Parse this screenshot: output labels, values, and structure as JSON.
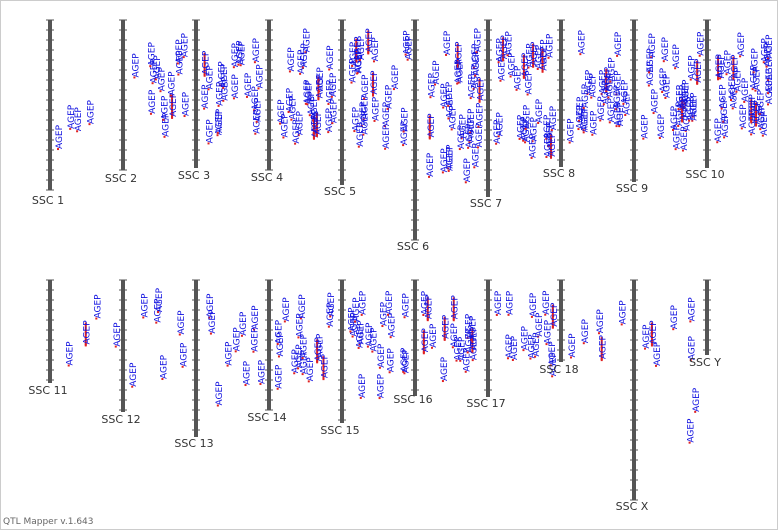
{
  "footer": "QTL Mapper v.1.643",
  "chromosomes": [
    {
      "name": "SSC 1",
      "qtls": [
        "AGEP",
        "AGEP",
        "AGEP",
        "AGEP"
      ]
    },
    {
      "name": "SSC 2",
      "qtls": [
        "AGEP",
        "AGEP",
        "AGEP",
        "AGEP",
        "AGEP",
        "AGEP",
        "AGEP",
        "AGEP",
        "AGEP",
        "AGEP",
        "AGEP",
        "AGEP",
        "AGEP",
        "AGEP"
      ]
    },
    {
      "name": "SSC 3",
      "qtls": [
        "AGEP",
        "AGEP",
        "AGEP",
        "AGEP",
        "AGEP",
        "AGEP",
        "AGEP",
        "AGEP",
        "AGEP",
        "AGEP",
        "AGEP",
        "AGEP",
        "AGEP",
        "AGEP",
        "AGEP",
        "AGEP",
        "AGEP",
        "AGEP",
        "AGEP",
        "AGEP"
      ]
    },
    {
      "name": "SSC 4",
      "qtls": [
        "AGEP",
        "AGEP",
        "AGEP",
        "AGEP",
        "AGEP",
        "AGEP",
        "AGEP",
        "AGEP",
        "AGEP",
        "AGEP",
        "AGEP",
        "AGEP",
        "AGEP",
        "AGEP",
        "AGEP",
        "AGEP",
        "AGEP",
        "AGEP",
        "AGEP",
        "AGEP",
        "AGEP",
        "AGEP",
        "AGEP",
        "AGEP"
      ]
    },
    {
      "name": "SSC 5",
      "qtls": [
        "AGEP",
        "AGEP",
        "AGEP",
        "AGEP",
        "AGEP",
        "AGEP",
        "AGEP",
        "AGEP",
        "AGEP",
        "AGEP",
        "AGEP",
        "AGEP",
        "AGEP",
        "AGEP",
        "AGEP",
        "AGEP",
        "AGEP",
        "AGEP",
        "AGEP",
        "AGEP",
        "AGEP",
        "AGEP",
        "AGEP",
        "AGEP"
      ]
    },
    {
      "name": "SSC 6",
      "qtls": [
        "AGEP",
        "AGEP",
        "AGEP",
        "AGEP",
        "AGEP",
        "AGEP",
        "AGEP",
        "AGEP",
        "AGEP",
        "AGEP",
        "AGEP",
        "AGEP",
        "AGEP",
        "AGEP",
        "AGEP",
        "AGEP",
        "AGEP",
        "AGEP",
        "AGEP",
        "AGEP",
        "AGEP",
        "AGEP",
        "AGEP",
        "AGEP",
        "AGEP",
        "AGEP",
        "AGEP",
        "AGEP",
        "AGEP",
        "AGEP"
      ]
    },
    {
      "name": "SSC 7",
      "qtls": [
        "AGEP",
        "AGEP",
        "AGEP",
        "AGEP",
        "AGEP",
        "AGEP",
        "AGEP",
        "AGEP",
        "AGEP",
        "AGEP",
        "AGEP",
        "AGEP",
        "AGEP",
        "AGEP",
        "AGEP",
        "AGEP",
        "AGEP",
        "AGEP",
        "AGEP",
        "AGEP",
        "AGEP",
        "AGEP",
        "AGEP",
        "AGEP",
        "AGEP",
        "AGEP",
        "AGEP",
        "AGEP"
      ]
    },
    {
      "name": "SSC 8",
      "qtls": [
        "AGEP",
        "AGEP",
        "AGEP",
        "AGEP",
        "AGEP",
        "AGEP",
        "AGEP",
        "AGEP",
        "AGEP",
        "AGEP",
        "AGEP",
        "AGEP",
        "AGEP",
        "AGEP",
        "AGEP",
        "AGEP",
        "AGEP",
        "AGEP",
        "AGEP",
        "AGEP",
        "AGEP",
        "AGEP",
        "AGEP",
        "AGEP"
      ]
    },
    {
      "name": "SSC 9",
      "qtls": [
        "AGEP",
        "AGEP",
        "AGEP",
        "AGEP",
        "AGEP",
        "AGEP",
        "AGEP",
        "AGEP",
        "AGEP",
        "AGEP",
        "AGEP",
        "AGEP",
        "AGEP",
        "AGEP",
        "AGEP",
        "AGEP",
        "AGEP",
        "AGEP",
        "AGEP",
        "AGEP",
        "AGEP",
        "AGEP",
        "AGEP",
        "AGEP",
        "AGEP",
        "AGEP"
      ]
    },
    {
      "name": "SSC 10",
      "qtls": [
        "AGEP",
        "AGEP",
        "AGEP",
        "AGEP",
        "AGEP",
        "AGEP",
        "AGEP",
        "AGEP",
        "AGEP",
        "AGEP",
        "AGEP",
        "AGEP",
        "AGEP",
        "AGEP",
        "AGEP",
        "AGEP",
        "AGEP",
        "AGEP",
        "AGEP",
        "AGEP",
        "AGEP",
        "AGEP",
        "AGEP",
        "AGEP",
        "AGEP",
        "AGEP",
        "AGEP",
        "AGEP",
        "AGEP",
        "AGEP"
      ]
    },
    {
      "name": "SSC 11",
      "qtls": [
        "AGEP",
        "AGEP",
        "AGEP",
        "AGEP"
      ]
    },
    {
      "name": "SSC 12",
      "qtls": [
        "AGEP",
        "AGEP",
        "AGEP",
        "AGEP",
        "AGEP",
        "AGEP",
        "AGEP"
      ]
    },
    {
      "name": "SSC 13",
      "qtls": [
        "AGEP",
        "AGEP",
        "AGEP",
        "AGEP",
        "AGEP",
        "AGEP",
        "AGEP",
        "AGEP",
        "AGEP",
        "AGEP"
      ]
    },
    {
      "name": "SSC 14",
      "qtls": [
        "AGEP",
        "AGEP",
        "AGEP",
        "AGEP",
        "AGEP",
        "AGEP",
        "AGEP",
        "AGEP",
        "AGEP",
        "AGEP",
        "AGEP",
        "AGEP",
        "AGEP",
        "AGEP",
        "AGEP",
        "AGEP"
      ]
    },
    {
      "name": "SSC 15",
      "qtls": [
        "AGEP",
        "AGEP",
        "AGEP",
        "AGEP",
        "AGEP",
        "AGEP",
        "AGEP",
        "AGEP",
        "AGEP",
        "AGEP",
        "AGEP",
        "AGEP",
        "AGEP",
        "AGEP",
        "AGEP",
        "AGEP",
        "AGEP",
        "AGEP"
      ]
    },
    {
      "name": "SSC 16",
      "qtls": [
        "AGEP",
        "AGEP",
        "AGEP",
        "AGEP",
        "AGEP",
        "AGEP",
        "AGEP",
        "AGEP",
        "AGEP",
        "AGEP",
        "AGEP",
        "AGEP",
        "AGEP",
        "AGEP",
        "AGEP",
        "AGEP"
      ]
    },
    {
      "name": "SSC 17",
      "qtls": [
        "AGEP",
        "AGEP",
        "AGEP",
        "AGEP",
        "AGEP",
        "AGEP",
        "AGEP",
        "AGEP",
        "AGEP",
        "AGEP",
        "AGEP",
        "AGEP",
        "AGEP",
        "AGEP"
      ]
    },
    {
      "name": "SSC 18",
      "qtls": [
        "AGEP",
        "AGEP",
        "AGEP",
        "AGEP",
        "AGEP"
      ]
    },
    {
      "name": "SSC X",
      "qtls": [
        "AGEP",
        "AGEP",
        "AGEP",
        "AGEP",
        "AGEP",
        "AGEP",
        "AGEP",
        "AGEP"
      ]
    },
    {
      "name": "SSC Y",
      "qtls": []
    }
  ]
}
